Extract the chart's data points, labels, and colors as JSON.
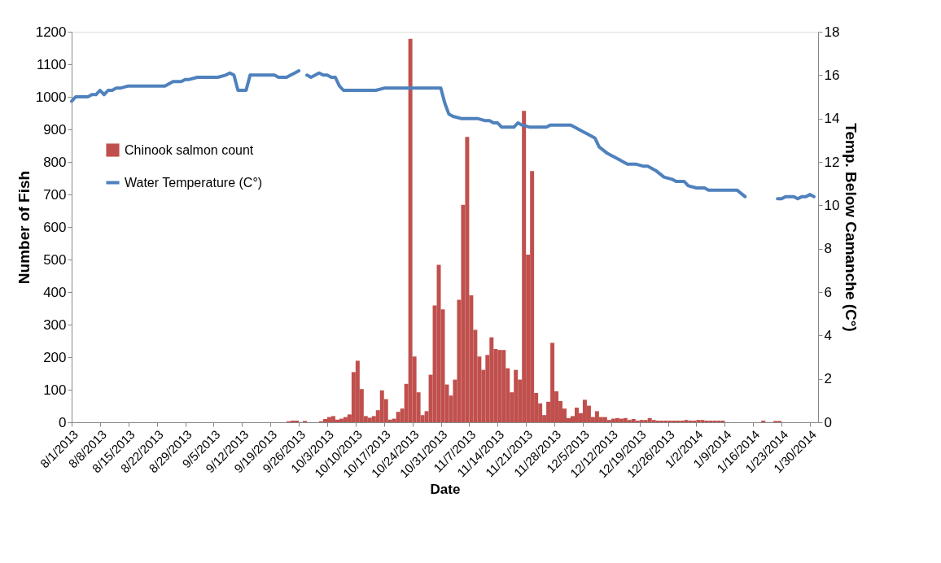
{
  "chart_data": {
    "type": "bar",
    "xlabel": "Date",
    "ylabel": "Number of Fish",
    "y2label": "Temp. Below Camanche (C°)",
    "xlim": [
      "2013-08-01",
      "2014-02-01"
    ],
    "xticks": [
      {
        "value": "2013-08-01",
        "label": "8/1/2013"
      },
      {
        "value": "2013-08-08",
        "label": "8/8/2013"
      },
      {
        "value": "2013-08-15",
        "label": "8/15/2013"
      },
      {
        "value": "2013-08-22",
        "label": "8/22/2013"
      },
      {
        "value": "2013-08-29",
        "label": "8/29/2013"
      },
      {
        "value": "2013-09-05",
        "label": "9/5/2013"
      },
      {
        "value": "2013-09-12",
        "label": "9/12/2013"
      },
      {
        "value": "2013-09-19",
        "label": "9/19/2013"
      },
      {
        "value": "2013-09-26",
        "label": "9/26/2013"
      },
      {
        "value": "2013-10-03",
        "label": "10/3/2013"
      },
      {
        "value": "2013-10-10",
        "label": "10/10/2013"
      },
      {
        "value": "2013-10-17",
        "label": "10/17/2013"
      },
      {
        "value": "2013-10-24",
        "label": "10/24/2013"
      },
      {
        "value": "2013-10-31",
        "label": "10/31/2013"
      },
      {
        "value": "2013-11-07",
        "label": "11/7/2013"
      },
      {
        "value": "2013-11-14",
        "label": "11/14/2013"
      },
      {
        "value": "2013-11-21",
        "label": "11/21/2013"
      },
      {
        "value": "2013-11-28",
        "label": "11/28/2013"
      },
      {
        "value": "2013-12-05",
        "label": "12/5/2013"
      },
      {
        "value": "2013-12-12",
        "label": "12/12/2013"
      },
      {
        "value": "2013-12-19",
        "label": "12/19/2013"
      },
      {
        "value": "2013-12-26",
        "label": "12/26/2013"
      },
      {
        "value": "2014-01-02",
        "label": "1/2/2014"
      },
      {
        "value": "2014-01-09",
        "label": "1/9/2014"
      },
      {
        "value": "2014-01-16",
        "label": "1/16/2014"
      },
      {
        "value": "2014-01-23",
        "label": "1/23/2014"
      },
      {
        "value": "2014-01-30",
        "label": "1/30/2014"
      }
    ],
    "ylim": [
      0,
      1200
    ],
    "yticks": [
      0,
      100,
      200,
      300,
      400,
      500,
      600,
      700,
      800,
      900,
      1000,
      1100,
      1200
    ],
    "y2lim": [
      0,
      18
    ],
    "y2ticks": [
      0,
      2,
      4,
      6,
      8,
      10,
      12,
      14,
      16,
      18
    ],
    "grid": false,
    "legend": "top left",
    "series": [
      {
        "name": "Chinook salmon count",
        "color": "#c0504d",
        "x": [
          "2013-09-23",
          "2013-09-24",
          "2013-09-25",
          "2013-09-27",
          "2013-10-01",
          "2013-10-02",
          "2013-10-03",
          "2013-10-04",
          "2013-10-05",
          "2013-10-06",
          "2013-10-07",
          "2013-10-08",
          "2013-10-09",
          "2013-10-10",
          "2013-10-11",
          "2013-10-12",
          "2013-10-13",
          "2013-10-14",
          "2013-10-15",
          "2013-10-16",
          "2013-10-17",
          "2013-10-18",
          "2013-10-19",
          "2013-10-20",
          "2013-10-21",
          "2013-10-22",
          "2013-10-23",
          "2013-10-24",
          "2013-10-25",
          "2013-10-26",
          "2013-10-27",
          "2013-10-28",
          "2013-10-29",
          "2013-10-30",
          "2013-10-31",
          "2013-11-01",
          "2013-11-02",
          "2013-11-03",
          "2013-11-04",
          "2013-11-05",
          "2013-11-06",
          "2013-11-07",
          "2013-11-08",
          "2013-11-09",
          "2013-11-10",
          "2013-11-11",
          "2013-11-12",
          "2013-11-13",
          "2013-11-14",
          "2013-11-15",
          "2013-11-16",
          "2013-11-17",
          "2013-11-18",
          "2013-11-19",
          "2013-11-20",
          "2013-11-21",
          "2013-11-22",
          "2013-11-23",
          "2013-11-24",
          "2013-11-25",
          "2013-11-26",
          "2013-11-27",
          "2013-11-28",
          "2013-11-29",
          "2013-11-30",
          "2013-12-01",
          "2013-12-02",
          "2013-12-03",
          "2013-12-04",
          "2013-12-05",
          "2013-12-06",
          "2013-12-07",
          "2013-12-08",
          "2013-12-09",
          "2013-12-10",
          "2013-12-11",
          "2013-12-12",
          "2013-12-13",
          "2013-12-14",
          "2013-12-15",
          "2013-12-16",
          "2013-12-17",
          "2013-12-18",
          "2013-12-19",
          "2013-12-20",
          "2013-12-21",
          "2013-12-22",
          "2013-12-23",
          "2013-12-24",
          "2013-12-25",
          "2013-12-26",
          "2013-12-27",
          "2013-12-28",
          "2013-12-29",
          "2013-12-30",
          "2013-12-31",
          "2014-01-01",
          "2014-01-02",
          "2014-01-03",
          "2014-01-04",
          "2014-01-05",
          "2014-01-06",
          "2014-01-07",
          "2014-01-08",
          "2014-01-18",
          "2014-01-21",
          "2014-01-22"
        ],
        "values": [
          3,
          5,
          5,
          4,
          3,
          10,
          16,
          19,
          8,
          11,
          16,
          24,
          154,
          189,
          102,
          19,
          14,
          19,
          37,
          98,
          71,
          8,
          11,
          32,
          42,
          118,
          1178,
          202,
          92,
          22,
          34,
          146,
          359,
          484,
          347,
          116,
          82,
          131,
          376,
          668,
          877,
          390,
          284,
          202,
          161,
          207,
          261,
          225,
          222,
          222,
          166,
          92,
          161,
          131,
          957,
          515,
          772,
          90,
          58,
          22,
          63,
          244,
          95,
          65,
          42,
          13,
          19,
          45,
          28,
          69,
          51,
          16,
          34,
          16,
          16,
          7,
          11,
          13,
          11,
          13,
          7,
          10,
          5,
          7,
          7,
          13,
          7,
          5,
          5,
          5,
          5,
          5,
          5,
          5,
          7,
          5,
          5,
          7,
          7,
          5,
          5,
          5,
          5,
          5,
          5,
          4,
          4
        ]
      },
      {
        "name": "Water Temperature (C°)",
        "type": "line",
        "axis": "y2",
        "color": "#4f81bd",
        "x": [
          "2013-08-01",
          "2013-08-02",
          "2013-08-05",
          "2013-08-06",
          "2013-08-07",
          "2013-08-08",
          "2013-08-09",
          "2013-08-10",
          "2013-08-11",
          "2013-08-12",
          "2013-08-13",
          "2013-08-15",
          "2013-08-24",
          "2013-08-26",
          "2013-08-28",
          "2013-08-29",
          "2013-08-30",
          "2013-09-01",
          "2013-09-06",
          "2013-09-08",
          "2013-09-09",
          "2013-09-10",
          "2013-09-11",
          "2013-09-13",
          "2013-09-14",
          "2013-09-20",
          "2013-09-21",
          "2013-09-23",
          "2013-09-24",
          "2013-09-25",
          "2013-09-26",
          "2013-09-27",
          "2013-09-28",
          "2013-09-29",
          "2013-10-01",
          "2013-10-02",
          "2013-10-03",
          "2013-10-04",
          "2013-10-05",
          "2013-10-06",
          "2013-10-07",
          "2013-10-15",
          "2013-10-17",
          "2013-10-31",
          "2013-11-01",
          "2013-11-02",
          "2013-11-03",
          "2013-11-05",
          "2013-11-09",
          "2013-11-11",
          "2013-11-12",
          "2013-11-13",
          "2013-11-14",
          "2013-11-15",
          "2013-11-18",
          "2013-11-19",
          "2013-11-20",
          "2013-11-22",
          "2013-11-26",
          "2013-11-27",
          "2013-12-02",
          "2013-12-03",
          "2013-12-05",
          "2013-12-06",
          "2013-12-08",
          "2013-12-09",
          "2013-12-11",
          "2013-12-12",
          "2013-12-14",
          "2013-12-16",
          "2013-12-18",
          "2013-12-20",
          "2013-12-21",
          "2013-12-23",
          "2013-12-25",
          "2013-12-27",
          "2013-12-28",
          "2013-12-30",
          "2013-12-31",
          "2014-01-02",
          "2014-01-04",
          "2014-01-05",
          "2014-01-09",
          "2014-01-10",
          "2014-01-12",
          "2014-01-14",
          "2014-01-15",
          "2014-01-22",
          "2014-01-23",
          "2014-01-24",
          "2014-01-26",
          "2014-01-27",
          "2014-01-28",
          "2014-01-29",
          "2014-01-30",
          "2014-01-31"
        ],
        "values": [
          14.8,
          15.0,
          15.0,
          15.1,
          15.1,
          15.3,
          15.1,
          15.3,
          15.3,
          15.4,
          15.4,
          15.5,
          15.5,
          15.7,
          15.7,
          15.8,
          15.8,
          15.9,
          15.9,
          16.0,
          16.1,
          16.0,
          15.3,
          15.3,
          16.0,
          16.0,
          15.9,
          15.9,
          16.0,
          16.1,
          16.2,
          null,
          16.0,
          15.9,
          16.1,
          16.0,
          16.0,
          15.9,
          15.9,
          15.5,
          15.3,
          15.3,
          15.4,
          15.4,
          14.7,
          14.2,
          14.1,
          14.0,
          14.0,
          13.9,
          13.9,
          13.8,
          13.8,
          13.6,
          13.6,
          13.8,
          13.7,
          13.6,
          13.6,
          13.7,
          13.7,
          13.6,
          13.4,
          13.3,
          13.1,
          12.7,
          12.4,
          12.3,
          12.1,
          11.9,
          11.9,
          11.8,
          11.8,
          11.6,
          11.3,
          11.2,
          11.1,
          11.1,
          10.9,
          10.8,
          10.8,
          10.7,
          10.7,
          10.7,
          10.7,
          10.4,
          null,
          10.3,
          10.3,
          10.4,
          10.4,
          10.3,
          10.4,
          10.4,
          10.5,
          10.4
        ]
      }
    ]
  }
}
